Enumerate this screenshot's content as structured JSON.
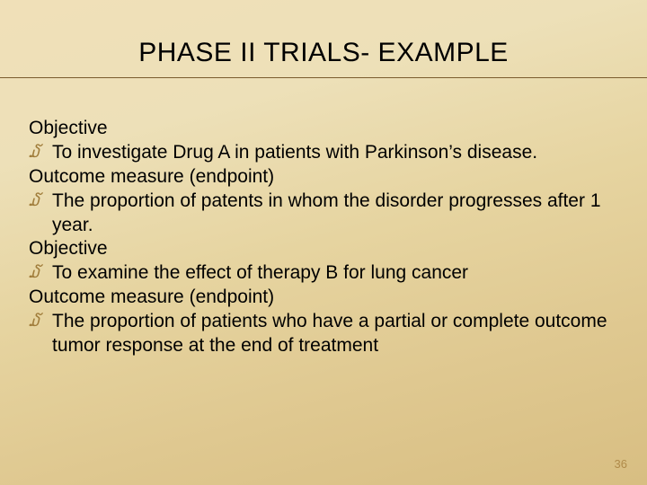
{
  "slide": {
    "title": "PHASE II TRIALS- EXAMPLE",
    "title_fontsize": 30,
    "title_color": "#000000",
    "underline_color": "#7a5c2e",
    "background_gradient": [
      "#f0e0b8",
      "#ede0b8",
      "#e6d4a0",
      "#dfc890",
      "#d8be82"
    ],
    "body_fontsize": 21,
    "body_color": "#000000",
    "bullet_glyph": "໓",
    "bullet_color": "#a07c3a",
    "lines": [
      {
        "kind": "heading",
        "text": "Objective"
      },
      {
        "kind": "bullet",
        "text": "To investigate Drug A  in patients with Parkinson’s disease."
      },
      {
        "kind": "heading",
        "text": "Outcome measure (endpoint)"
      },
      {
        "kind": "bullet",
        "text": "The proportion of patents in whom the disorder progresses after 1 year."
      },
      {
        "kind": "heading",
        "text": "Objective"
      },
      {
        "kind": "bullet",
        "text": "To examine the effect of therapy B for lung cancer"
      },
      {
        "kind": "heading",
        "text": "Outcome measure (endpoint)"
      },
      {
        "kind": "bullet",
        "text": "The proportion of patients who have a partial or complete outcome tumor response at the end of treatment"
      }
    ],
    "page_number": "36",
    "page_number_color": "#b08b4a",
    "page_number_fontsize": 13
  }
}
